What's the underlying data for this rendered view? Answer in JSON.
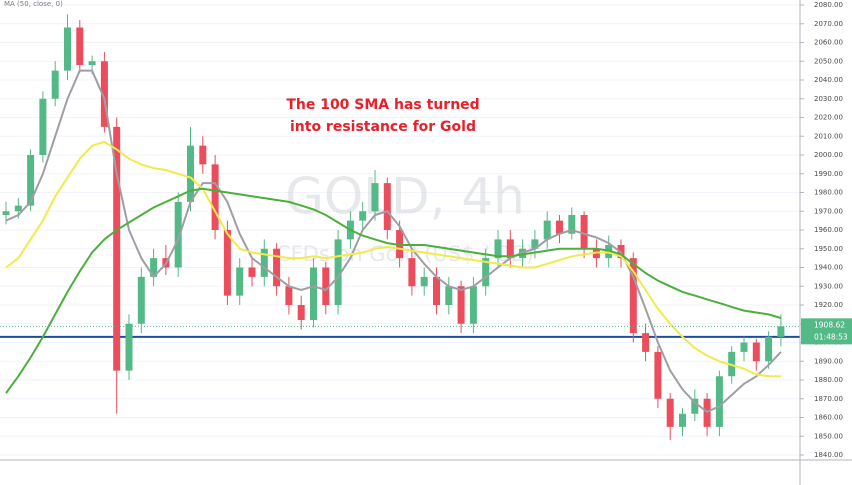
{
  "chart_data": {
    "type": "candlestick",
    "watermark": "GOLD, 4h",
    "watermark_subtitle": "CFDs on Gold (US$ / OZ)",
    "indicator_label": "MA (50, close, 0)",
    "annotation": [
      "The 100 SMA has turned",
      "into resistance for Gold"
    ],
    "up_color": "#53b987",
    "down_color": "#eb4d5c",
    "open": [
      1968,
      1970,
      1973,
      2000,
      2030,
      2045,
      2068,
      2048,
      2050,
      2015,
      1885,
      1910,
      1935,
      1945,
      1940,
      1975,
      2005,
      1995,
      1960,
      1925,
      1940,
      1935,
      1950,
      1930,
      1920,
      1912,
      1940,
      1920,
      1955,
      1965,
      1970,
      1985,
      1960,
      1945,
      1930,
      1935,
      1920,
      1930,
      1910,
      1930,
      1945,
      1955,
      1945,
      1950,
      1955,
      1965,
      1958,
      1968,
      1950,
      1945,
      1952,
      1945,
      1905,
      1895,
      1870,
      1855,
      1862,
      1870,
      1855,
      1882,
      1895,
      1900,
      1890,
      1903
    ],
    "high": [
      1975,
      1977,
      2003,
      2034,
      2050,
      2075,
      2072,
      2053,
      2055,
      2020,
      1915,
      1940,
      1950,
      1952,
      1980,
      2015,
      2010,
      2000,
      1965,
      1945,
      1945,
      1955,
      1953,
      1935,
      1925,
      1945,
      1943,
      1960,
      1970,
      1975,
      1992,
      1988,
      1965,
      1950,
      1940,
      1940,
      1935,
      1933,
      1935,
      1950,
      1960,
      1960,
      1955,
      1960,
      1970,
      1968,
      1972,
      1970,
      1955,
      1957,
      1955,
      1948,
      1910,
      1898,
      1873,
      1865,
      1875,
      1873,
      1885,
      1898,
      1903,
      1902,
      1906,
      1915
    ],
    "low": [
      1963,
      1966,
      1970,
      1996,
      2026,
      2040,
      2044,
      2043,
      2012,
      1862,
      1880,
      1905,
      1930,
      1936,
      1935,
      1970,
      1990,
      1955,
      1920,
      1920,
      1930,
      1930,
      1925,
      1915,
      1907,
      1908,
      1915,
      1915,
      1950,
      1960,
      1965,
      1955,
      1940,
      1925,
      1925,
      1915,
      1915,
      1905,
      1905,
      1925,
      1940,
      1940,
      1940,
      1945,
      1950,
      1953,
      1955,
      1945,
      1940,
      1940,
      1940,
      1900,
      1890,
      1865,
      1848,
      1850,
      1858,
      1850,
      1850,
      1878,
      1890,
      1885,
      1886,
      1898
    ],
    "close": [
      1970,
      1973,
      2000,
      2030,
      2045,
      2068,
      2048,
      2050,
      2015,
      1885,
      1910,
      1935,
      1945,
      1940,
      1975,
      2005,
      1995,
      1960,
      1925,
      1940,
      1935,
      1950,
      1930,
      1920,
      1912,
      1940,
      1920,
      1955,
      1965,
      1970,
      1985,
      1960,
      1945,
      1930,
      1935,
      1920,
      1930,
      1910,
      1930,
      1945,
      1955,
      1945,
      1950,
      1955,
      1965,
      1958,
      1968,
      1950,
      1945,
      1952,
      1945,
      1905,
      1895,
      1870,
      1855,
      1862,
      1870,
      1855,
      1882,
      1895,
      1900,
      1890,
      1903,
      1908.62
    ],
    "ma_series": [
      {
        "color": "#9e9ea4",
        "values": [
          1965,
          1968,
          1975,
          1990,
          2010,
          2030,
          2045,
          2045,
          2030,
          1990,
          1960,
          1945,
          1935,
          1942,
          1955,
          1975,
          1985,
          1985,
          1975,
          1958,
          1945,
          1940,
          1935,
          1930,
          1928,
          1930,
          1928,
          1935,
          1945,
          1960,
          1968,
          1970,
          1962,
          1950,
          1942,
          1935,
          1930,
          1928,
          1930,
          1935,
          1940,
          1945,
          1948,
          1950,
          1955,
          1958,
          1960,
          1958,
          1956,
          1953,
          1948,
          1935,
          1918,
          1900,
          1885,
          1875,
          1868,
          1863,
          1866,
          1872,
          1878,
          1882,
          1888,
          1895
        ]
      },
      {
        "color": "#f2ea4b",
        "values": [
          1940,
          1945,
          1955,
          1965,
          1978,
          1988,
          1998,
          2005,
          2007,
          2003,
          1998,
          1995,
          1993,
          1992,
          1990,
          1988,
          1982,
          1970,
          1958,
          1950,
          1948,
          1947,
          1946,
          1945,
          1945,
          1946,
          1945,
          1946,
          1947,
          1948,
          1950,
          1951,
          1950,
          1949,
          1948,
          1947,
          1946,
          1945,
          1944,
          1943,
          1942,
          1941,
          1940,
          1940,
          1942,
          1944,
          1946,
          1947,
          1948,
          1948,
          1946,
          1938,
          1928,
          1918,
          1910,
          1903,
          1897,
          1893,
          1890,
          1888,
          1886,
          1883,
          1882,
          1882
        ]
      },
      {
        "color": "#4caf3c",
        "values": [
          1873,
          1882,
          1892,
          1903,
          1915,
          1927,
          1938,
          1948,
          1955,
          1960,
          1964,
          1968,
          1972,
          1975,
          1978,
          1981,
          1982,
          1981,
          1980,
          1979,
          1978,
          1977,
          1976,
          1975,
          1973,
          1971,
          1968,
          1964,
          1960,
          1957,
          1955,
          1953,
          1952,
          1952,
          1952,
          1951,
          1950,
          1949,
          1948,
          1947,
          1946,
          1946,
          1947,
          1948,
          1949,
          1950,
          1950,
          1950,
          1950,
          1949,
          1947,
          1942,
          1937,
          1933,
          1930,
          1927,
          1925,
          1923,
          1921,
          1919,
          1917,
          1916,
          1915,
          1913
        ]
      }
    ],
    "hline": 1903,
    "hline_color": "#1f4e9c",
    "last_price": 1908.62,
    "countdown": "01:48:53",
    "ylim": [
      1840,
      2080
    ],
    "yticks": [
      {
        "value": 2080,
        "label": "2080.00"
      },
      {
        "value": 2070,
        "label": "2070.00"
      },
      {
        "value": 2060,
        "label": "2060.00"
      },
      {
        "value": 2050,
        "label": "2050.00"
      },
      {
        "value": 2040,
        "label": "2040.00"
      },
      {
        "value": 2030,
        "label": "2030.00"
      },
      {
        "value": 2020,
        "label": "2020.00"
      },
      {
        "value": 2010,
        "label": "2010.00"
      },
      {
        "value": 2000,
        "label": "2000.00"
      },
      {
        "value": 1990,
        "label": "1990.00"
      },
      {
        "value": 1980,
        "label": "1980.00"
      },
      {
        "value": 1970,
        "label": "1970.00"
      },
      {
        "value": 1960,
        "label": "1960.00"
      },
      {
        "value": 1950,
        "label": "1950.00"
      },
      {
        "value": 1940,
        "label": "1940.00"
      },
      {
        "value": 1930,
        "label": "1930.00"
      },
      {
        "value": 1920,
        "label": "1920.00"
      },
      {
        "value": 1910,
        "label": "1910.00"
      },
      {
        "value": 1900,
        "label": "1900.00"
      },
      {
        "value": 1890,
        "label": "1890.00"
      },
      {
        "value": 1880,
        "label": "1880.00"
      },
      {
        "value": 1870,
        "label": "1870.00"
      },
      {
        "value": 1860,
        "label": "1860.00"
      },
      {
        "value": 1850,
        "label": "1850.00"
      },
      {
        "value": 1840,
        "label": "1840.00"
      }
    ],
    "grid": true
  }
}
